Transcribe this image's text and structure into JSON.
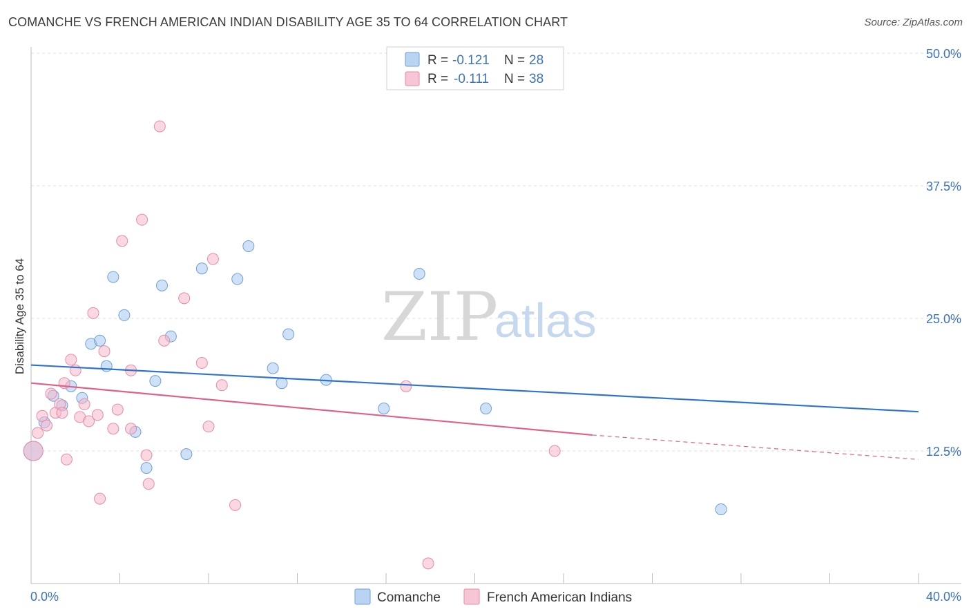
{
  "title": "COMANCHE VS FRENCH AMERICAN INDIAN DISABILITY AGE 35 TO 64 CORRELATION CHART",
  "source": "Source: ZipAtlas.com",
  "watermark": {
    "part1": "ZIP",
    "part2": "atlas"
  },
  "legend": {
    "r_label": "R =",
    "n_label": "N =",
    "rows": [
      {
        "r": "-0.121",
        "n": "28",
        "color": "#a8c8f0"
      },
      {
        "r": "-0.111",
        "n": "38",
        "color": "#f5b8cb"
      }
    ]
  },
  "bottom_legend": [
    {
      "label": "Comanche",
      "color": "#a8c8f0"
    },
    {
      "label": "French American Indians",
      "color": "#f5b8cb"
    }
  ],
  "chart_data": {
    "type": "scatter",
    "xlabel": "",
    "ylabel": "Disability Age 35 to 64",
    "xlim": [
      0,
      40
    ],
    "ylim": [
      0,
      50
    ],
    "x_tick_labels": [
      "0.0%",
      "40.0%"
    ],
    "y_ticks": [
      12.5,
      25.0,
      37.5,
      50.0
    ],
    "y_tick_labels": [
      "12.5%",
      "25.0%",
      "37.5%",
      "50.0%"
    ],
    "grid": "horizontal-dashed",
    "legend_position": "top-center",
    "series": [
      {
        "name": "Comanche",
        "color": "#a8c8f0",
        "stroke": "#6f9fd8",
        "line_color": "#2f74cc",
        "trend": {
          "x": [
            0,
            40
          ],
          "y": [
            20.6,
            16.2
          ]
        },
        "points": [
          [
            0.1,
            12.5
          ],
          [
            0.6,
            15.2
          ],
          [
            1.0,
            17.7
          ],
          [
            1.4,
            16.8
          ],
          [
            1.8,
            18.6
          ],
          [
            2.3,
            17.5
          ],
          [
            2.7,
            22.6
          ],
          [
            3.1,
            22.9
          ],
          [
            3.4,
            20.5
          ],
          [
            3.7,
            28.9
          ],
          [
            4.2,
            25.3
          ],
          [
            4.7,
            14.3
          ],
          [
            5.2,
            10.9
          ],
          [
            5.6,
            19.1
          ],
          [
            5.9,
            28.1
          ],
          [
            6.3,
            23.3
          ],
          [
            7.0,
            12.2
          ],
          [
            7.7,
            29.7
          ],
          [
            9.3,
            28.7
          ],
          [
            9.8,
            31.8
          ],
          [
            10.9,
            20.3
          ],
          [
            11.3,
            18.9
          ],
          [
            11.6,
            23.5
          ],
          [
            13.3,
            19.2
          ],
          [
            15.9,
            16.5
          ],
          [
            17.5,
            29.2
          ],
          [
            20.5,
            16.5
          ],
          [
            31.1,
            7.0
          ]
        ]
      },
      {
        "name": "French American Indians",
        "color": "#f5b8cb",
        "stroke": "#e88aa8",
        "line_color": "#e0608a",
        "trend": {
          "x": [
            0,
            25.3
          ],
          "y": [
            18.9,
            14.0
          ]
        },
        "trend_dashed": {
          "x": [
            25.3,
            40
          ],
          "y": [
            14.0,
            11.7
          ]
        },
        "points": [
          [
            0.1,
            12.5
          ],
          [
            0.3,
            14.2
          ],
          [
            0.5,
            15.8
          ],
          [
            0.7,
            14.9
          ],
          [
            0.9,
            17.9
          ],
          [
            1.1,
            16.1
          ],
          [
            1.3,
            16.9
          ],
          [
            1.4,
            16.1
          ],
          [
            1.5,
            18.9
          ],
          [
            1.6,
            11.7
          ],
          [
            1.8,
            21.1
          ],
          [
            2.0,
            20.1
          ],
          [
            2.2,
            15.7
          ],
          [
            2.4,
            16.9
          ],
          [
            2.6,
            15.3
          ],
          [
            2.8,
            25.5
          ],
          [
            3.0,
            15.9
          ],
          [
            3.1,
            8.0
          ],
          [
            3.3,
            21.9
          ],
          [
            3.7,
            14.6
          ],
          [
            3.9,
            16.4
          ],
          [
            4.1,
            32.3
          ],
          [
            4.5,
            14.6
          ],
          [
            4.5,
            20.1
          ],
          [
            5.0,
            34.3
          ],
          [
            5.2,
            12.1
          ],
          [
            5.3,
            9.4
          ],
          [
            5.8,
            43.1
          ],
          [
            6.0,
            22.9
          ],
          [
            6.9,
            26.9
          ],
          [
            7.7,
            20.8
          ],
          [
            8.0,
            14.8
          ],
          [
            8.2,
            30.6
          ],
          [
            8.6,
            18.7
          ],
          [
            9.2,
            7.4
          ],
          [
            16.9,
            18.6
          ],
          [
            17.9,
            1.9
          ],
          [
            23.6,
            12.5
          ]
        ]
      }
    ]
  }
}
